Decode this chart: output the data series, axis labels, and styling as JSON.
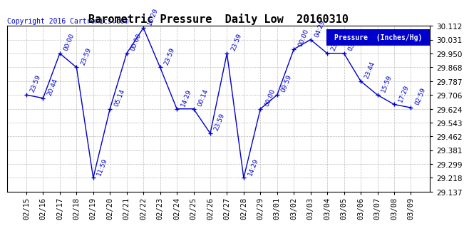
{
  "title": "Barometric Pressure  Daily Low  20160310",
  "copyright": "Copyright 2016 Cartronics.com",
  "legend_label": "Pressure  (Inches/Hg)",
  "dates": [
    "02/15",
    "02/16",
    "02/17",
    "02/18",
    "02/19",
    "02/20",
    "02/21",
    "02/22",
    "02/23",
    "02/24",
    "02/25",
    "02/26",
    "02/27",
    "02/28",
    "02/29",
    "03/01",
    "03/02",
    "03/03",
    "03/04",
    "03/05",
    "03/06",
    "03/07",
    "03/08",
    "03/09"
  ],
  "values": [
    29.706,
    29.687,
    29.95,
    29.868,
    29.218,
    29.624,
    29.95,
    30.1,
    29.868,
    29.624,
    29.624,
    29.48,
    29.95,
    29.218,
    29.624,
    29.706,
    29.975,
    30.031,
    29.95,
    29.95,
    29.787,
    29.706,
    29.65,
    29.631
  ],
  "annotations": [
    "23:59",
    "20:44",
    "00:00",
    "23:59",
    "11:59",
    "05:14",
    "00:00",
    "16:29",
    "23:59",
    "14:29",
    "00:14",
    "23:59",
    "23:59",
    "14:29",
    "00:00",
    "09:59",
    "00:00",
    "04:29",
    "23:59",
    "03:44",
    "23:44",
    "15:59",
    "17:29",
    "02:59"
  ],
  "ylim_min": 29.137,
  "ylim_max": 30.112,
  "yticks": [
    29.137,
    29.218,
    29.299,
    29.381,
    29.462,
    29.543,
    29.624,
    29.706,
    29.787,
    29.868,
    29.95,
    30.031,
    30.112
  ],
  "line_color": "#0000CC",
  "marker_color": "#0000CC",
  "bg_color": "#ffffff",
  "grid_color": "#aaaaaa",
  "title_fontsize": 11,
  "annotation_fontsize": 6.5,
  "tick_fontsize": 7.5,
  "copyright_fontsize": 7,
  "legend_bg": "#0000CC",
  "legend_fg": "#ffffff",
  "legend_fontsize": 7
}
